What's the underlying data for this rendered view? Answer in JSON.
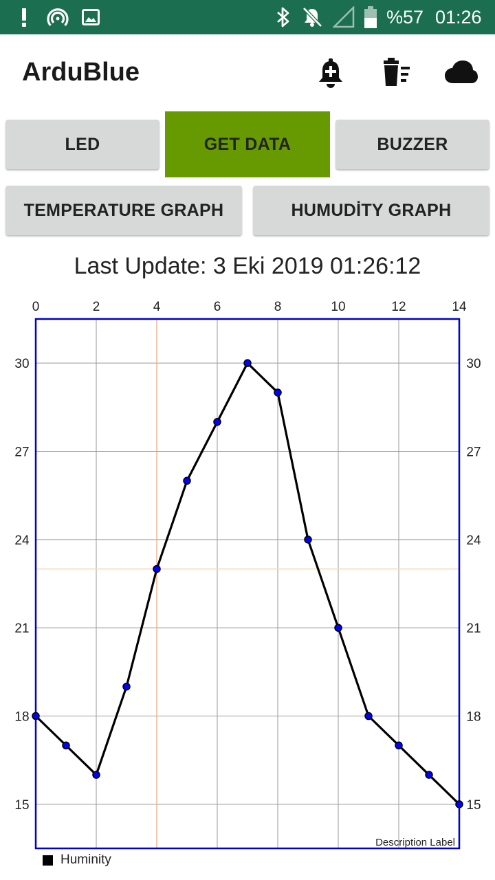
{
  "status_bar": {
    "battery": "%57",
    "time": "01:26",
    "icons": [
      "alert-icon",
      "hotspot-icon",
      "image-icon",
      "bluetooth-icon",
      "notifications-off-icon",
      "no-signal-icon",
      "battery-icon"
    ]
  },
  "app_bar": {
    "title": "ArduBlue",
    "icons": [
      "add-alert-icon",
      "clear-list-icon",
      "cloud-icon"
    ]
  },
  "buttons": {
    "led": "LED",
    "get_data": "GET DATA",
    "buzzer": "BUZZER",
    "temperature_graph": "TEMPERATURE GRAPH",
    "humidity_graph": "HUMUDİTY GRAPH"
  },
  "colors": {
    "status_bar": "#1b6e4f",
    "active_button": "#669a00",
    "button": "#d7d8d8",
    "chart_border": "#0000cc",
    "point": "#0000ff",
    "line": "#000000",
    "highlight": "#f5c9a0"
  },
  "last_update": "Last Update: 3 Eki 2019 01:26:12",
  "chart_data": {
    "type": "line",
    "x": [
      0,
      1,
      2,
      3,
      4,
      5,
      6,
      7,
      8,
      9,
      10,
      11,
      12,
      13,
      14
    ],
    "series": [
      {
        "name": "Huminity",
        "values": [
          18,
          17,
          16,
          19,
          23,
          26,
          28,
          30,
          29,
          24,
          21,
          18,
          17,
          16,
          15
        ]
      }
    ],
    "x_ticks": [
      0,
      2,
      4,
      6,
      8,
      10,
      12,
      14
    ],
    "y_ticks": [
      15,
      18,
      21,
      24,
      27,
      30
    ],
    "xlim": [
      0,
      14
    ],
    "ylim": [
      13.5,
      31.5
    ],
    "x_axis_position": "top",
    "y_axis_position": "both",
    "grid": true,
    "highlight": {
      "x": 4,
      "y": 23
    },
    "description": "Description Label",
    "legend_position": "bottom-left"
  }
}
